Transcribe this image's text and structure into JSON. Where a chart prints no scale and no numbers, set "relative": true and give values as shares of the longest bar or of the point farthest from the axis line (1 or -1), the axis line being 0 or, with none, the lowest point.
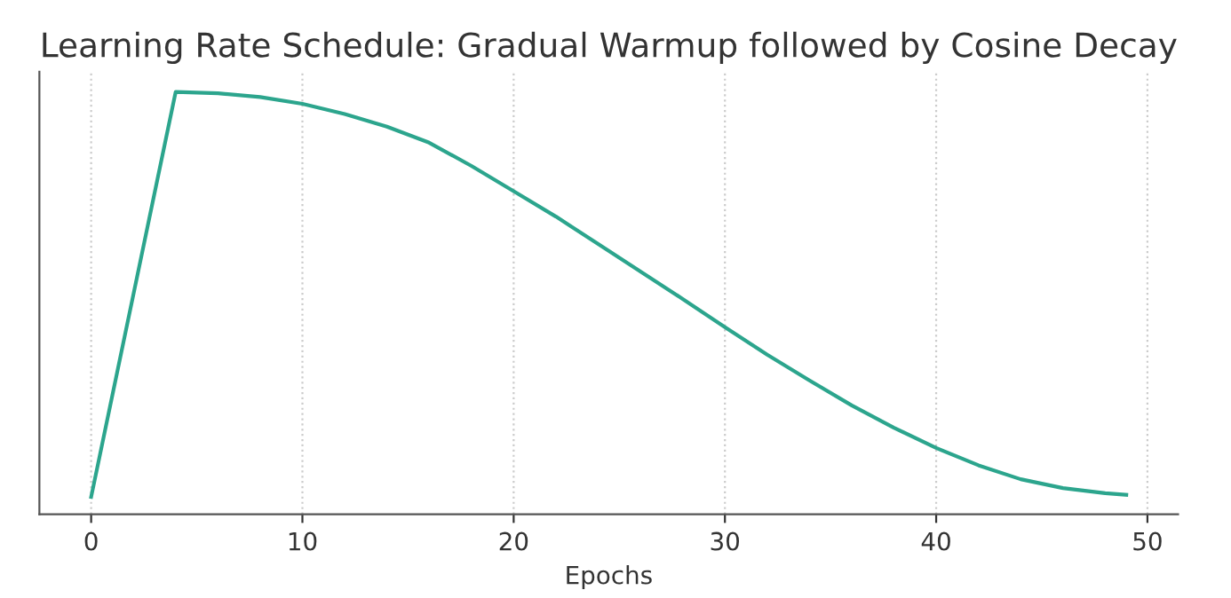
{
  "chart_data": {
    "type": "line",
    "title": "Learning Rate Schedule: Gradual Warmup followed by Cosine Decay",
    "xlabel": "Epochs",
    "relative": true,
    "x": [
      0,
      4,
      6,
      8,
      10,
      12,
      14,
      16,
      18,
      20,
      22,
      24,
      26,
      28,
      30,
      32,
      34,
      36,
      38,
      40,
      42,
      44,
      46,
      48,
      49
    ],
    "series": [
      {
        "color": "#2ca58d",
        "values": [
          0.041,
          1.0,
          0.997,
          0.988,
          0.972,
          0.948,
          0.918,
          0.88,
          0.825,
          0.765,
          0.705,
          0.64,
          0.575,
          0.51,
          0.443,
          0.378,
          0.317,
          0.258,
          0.205,
          0.157,
          0.116,
          0.083,
          0.062,
          0.05,
          0.046
        ]
      }
    ],
    "xlim": [
      -2.45,
      51.45
    ],
    "xticks": [
      0,
      10,
      20,
      30,
      40,
      50
    ],
    "grid": "x",
    "marker": "none",
    "line_style": "solid"
  }
}
